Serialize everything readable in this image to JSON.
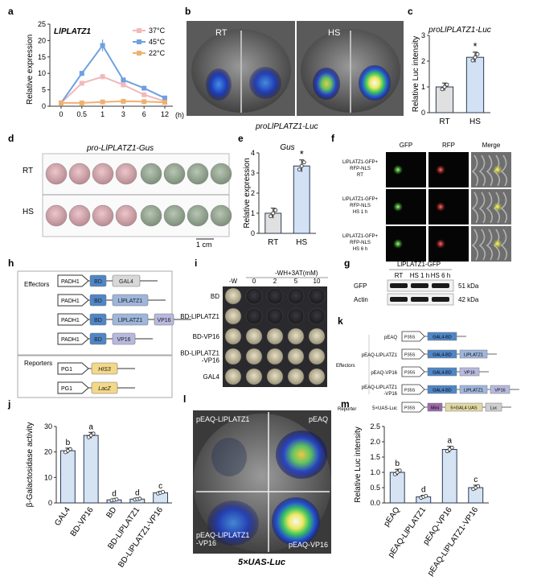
{
  "colors": {
    "c37": "#f2b8bb",
    "c45": "#6fa0e0",
    "c22": "#f0b070",
    "bar": "#d5e3f3",
    "barEdge": "#2a3a55",
    "rt": "#e0e0e0",
    "hs": "#d3e1f5",
    "bd": "#4f86c6",
    "gal4": "#d8d8d8",
    "lip": "#9fb6dc",
    "vp16": "#b8b8df",
    "his3": "#f2d888",
    "lacz": "#f2d888",
    "minimal": "#9a6aa8",
    "gal4uas": "#e2d8a4",
    "luc": "#cfcfcf"
  },
  "panels": {
    "a": {
      "letter": "a",
      "gene": "LlPLATZ1"
    },
    "b": {
      "letter": "b",
      "rt": "RT",
      "hs": "HS",
      "caption": "proLlPLATZ1-Luc"
    },
    "c": {
      "letter": "c"
    },
    "d": {
      "letter": "d",
      "title": "pro-LlPLATZ1-Gus",
      "row_rt": "RT",
      "row_hs": "HS",
      "scale": "1 cm"
    },
    "e": {
      "letter": "e"
    },
    "f": {
      "letter": "f",
      "cols": [
        "GFP",
        "RFP",
        "Merge"
      ],
      "rows": [
        "LlPLATZ1-GFP+\nRFP-NLS\nRT",
        "LlPLATZ1-GFP+\nRFP-NLS\nHS 1 h",
        "LlPLATZ1-GFP+\nRFP-NLS\nHS 6 h"
      ]
    },
    "g": {
      "letter": "g",
      "header": "LlPLATZ1-GFP",
      "cols": [
        "RT",
        "HS 1 h",
        "HS 6 h"
      ],
      "rows": [
        "GFP",
        "Actin"
      ],
      "sizes": [
        "51 kDa",
        "42 kDa"
      ]
    },
    "h": {
      "letter": "h",
      "effectors": "Effectors",
      "reporters": "Reporters",
      "promoter_adh1": "PADH1",
      "promoter_g1": "PG1",
      "bd": "BD",
      "gal4": "GAL4",
      "lip": "LlPLATZ1",
      "vp16": "VP16",
      "his3": "HIS3",
      "lacz": "LacZ"
    },
    "i": {
      "letter": "i",
      "header": "-WH+3AT(mM)",
      "col_w": "-W",
      "cols": [
        "0",
        "2",
        "5",
        "10"
      ],
      "rows": [
        "BD",
        "BD-LlPLATZ1",
        "BD-VP16",
        "BD-LlPLATZ1\n-VP16",
        "GAL4"
      ]
    },
    "j": {
      "letter": "j"
    },
    "k": {
      "letter": "k",
      "effectors": "Effectors",
      "reporter": "Reporter",
      "rows": [
        {
          "name": "pEAQ",
          "parts": [
            "GAL4-BD"
          ]
        },
        {
          "name": "pEAQ-LlPLATZ1",
          "parts": [
            "GAL4-BD",
            "LlPLATZ1"
          ]
        },
        {
          "name": "pEAQ-VP16",
          "parts": [
            "GAL4-BD",
            "VP16"
          ]
        },
        {
          "name": "pEAQ-LlPLATZ1\n-VP16",
          "parts": [
            "GAL4-BD",
            "LlPLATZ1",
            "VP16"
          ]
        }
      ],
      "reporter_row": {
        "name": "5×UAS-Luc",
        "parts": [
          "Mini",
          "5×GAL4 UAS",
          "Luc"
        ]
      },
      "promoter": "P35S"
    },
    "l": {
      "letter": "l",
      "tl": "pEAQ-LlPLATZ1",
      "tr": "pEAQ",
      "bl": "pEAQ-LlPLATZ1\n-VP16",
      "br": "pEAQ-VP16",
      "caption": "5×UAS-Luc"
    },
    "m": {
      "letter": "m"
    }
  },
  "chart_data": [
    {
      "panel": "a",
      "type": "line",
      "title": "LlPLATZ1",
      "xlabel": "(h)",
      "ylabel": "Relative expression",
      "categories": [
        "0",
        "0.5",
        "1",
        "3",
        "6",
        "12"
      ],
      "ylim": [
        0,
        25
      ],
      "yticks": [
        0,
        5,
        10,
        15,
        20,
        25
      ],
      "series": [
        {
          "name": "37°C",
          "color": "#f2b8bb",
          "values": [
            1,
            7,
            9,
            6.5,
            3.5,
            1.5
          ],
          "err": [
            0.2,
            0.5,
            0.8,
            0.5,
            0.4,
            0.3
          ]
        },
        {
          "name": "45°C",
          "color": "#6fa0e0",
          "values": [
            1,
            10,
            18.5,
            8,
            5.5,
            2.5
          ],
          "err": [
            0.2,
            0.8,
            1.8,
            0.6,
            0.5,
            0.4
          ]
        },
        {
          "name": "22°C",
          "color": "#f0b070",
          "values": [
            1,
            1,
            1.3,
            1.5,
            1.4,
            1.2
          ],
          "err": [
            0.1,
            0.1,
            0.2,
            0.2,
            0.2,
            0.1
          ]
        }
      ]
    },
    {
      "panel": "c",
      "type": "bar",
      "title": "proLlPLATZ1-Luc",
      "ylabel": "Relative Luc intensity",
      "categories": [
        "RT",
        "HS"
      ],
      "values": [
        1.0,
        2.15
      ],
      "err": [
        0.15,
        0.2
      ],
      "ylim": [
        0,
        3
      ],
      "yticks": [
        0,
        1,
        2,
        3
      ],
      "signif": [
        "",
        "*"
      ]
    },
    {
      "panel": "e",
      "type": "bar",
      "title": "Gus",
      "ylabel": "Relative expression",
      "categories": [
        "RT",
        "HS"
      ],
      "values": [
        1.0,
        3.35
      ],
      "err": [
        0.25,
        0.3
      ],
      "ylim": [
        0,
        4
      ],
      "yticks": [
        0,
        1,
        2,
        3,
        4
      ],
      "signif": [
        "",
        "*"
      ]
    },
    {
      "panel": "j",
      "type": "bar",
      "ylabel": "β-Galactosidase activity",
      "categories": [
        "GAL4",
        "BD-VP16",
        "BD",
        "BD-LlPLATZ1",
        "BD-LlPLATZ1-VP16"
      ],
      "values": [
        20.5,
        26.5,
        1.2,
        1.5,
        4.0
      ],
      "err": [
        1.0,
        1.2,
        0.3,
        0.3,
        0.5
      ],
      "ylim": [
        0,
        30
      ],
      "yticks": [
        0,
        10,
        20,
        30
      ],
      "letters": [
        "b",
        "a",
        "d",
        "d",
        "c"
      ]
    },
    {
      "panel": "m",
      "type": "bar",
      "ylabel": "Relative Luc intensity",
      "categories": [
        "pEAQ",
        "pEAQ-LlPLATZ1",
        "pEAQ-VP16",
        "pEAQ-LlPLATZ1-VP16"
      ],
      "values": [
        1.0,
        0.2,
        1.75,
        0.5
      ],
      "err": [
        0.1,
        0.05,
        0.1,
        0.08
      ],
      "ylim": [
        0,
        2.5
      ],
      "yticks": [
        0.0,
        0.5,
        1.0,
        1.5,
        2.0,
        2.5
      ],
      "letters": [
        "b",
        "d",
        "a",
        "c"
      ]
    }
  ]
}
